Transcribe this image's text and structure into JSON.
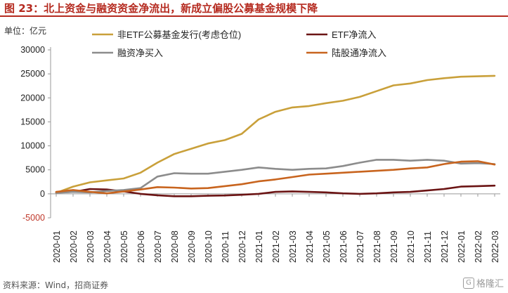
{
  "figure": {
    "title": "图 23：北上资金与融资资金净流出，新成立偏股公募基金规模下降",
    "source": "资料来源：Wind，招商证券",
    "watermark": "格隆汇",
    "accent_color": "#b52a1f"
  },
  "chart_data": {
    "type": "line",
    "unit_label": "单位：亿元",
    "ylim": [
      -5000,
      30000
    ],
    "yticks": [
      -5000,
      0,
      5000,
      10000,
      15000,
      20000,
      25000,
      30000
    ],
    "x": [
      "2020-01",
      "2020-02",
      "2020-03",
      "2020-04",
      "2020-05",
      "2020-06",
      "2020-07",
      "2020-08",
      "2020-09",
      "2020-10",
      "2020-11",
      "2020-12",
      "2021-01",
      "2021-02",
      "2021-03",
      "2021-04",
      "2021-05",
      "2021-06",
      "2021-07",
      "2021-08",
      "2021-09",
      "2021-10",
      "2021-11",
      "2021-12",
      "2022-01",
      "2022-02",
      "2022-03"
    ],
    "grid": false,
    "legend_position": "top",
    "series": [
      {
        "name": "非ETF公募基金发行(考虑仓位)",
        "color": "#c9a03a",
        "values": [
          200,
          1500,
          2400,
          2800,
          3200,
          4400,
          6500,
          8300,
          9400,
          10500,
          11200,
          12500,
          15500,
          17100,
          18000,
          18300,
          18900,
          19400,
          20200,
          21400,
          22600,
          23000,
          23700,
          24100,
          24400,
          24500,
          24600
        ]
      },
      {
        "name": "ETF净流入",
        "color": "#6b1414",
        "values": [
          300,
          400,
          1000,
          900,
          500,
          0,
          -300,
          -500,
          -500,
          -400,
          -350,
          -200,
          0,
          400,
          500,
          400,
          300,
          100,
          0,
          100,
          300,
          400,
          700,
          1000,
          1500,
          1600,
          1700
        ]
      },
      {
        "name": "融资净买入",
        "color": "#8c8c8c",
        "values": [
          200,
          400,
          300,
          600,
          800,
          1200,
          3600,
          4300,
          4200,
          4200,
          4600,
          5000,
          5500,
          5200,
          5000,
          5200,
          5300,
          5800,
          6500,
          7100,
          7100,
          6900,
          7100,
          6900,
          6300,
          6400,
          6200
        ]
      },
      {
        "name": "陆股通净流入",
        "color": "#c8641e",
        "values": [
          400,
          800,
          400,
          100,
          500,
          900,
          1400,
          1300,
          1100,
          1200,
          1600,
          2000,
          2600,
          3000,
          3500,
          4000,
          4200,
          4400,
          4600,
          4800,
          5000,
          5300,
          5500,
          6200,
          6700,
          6800,
          6100
        ]
      }
    ]
  }
}
